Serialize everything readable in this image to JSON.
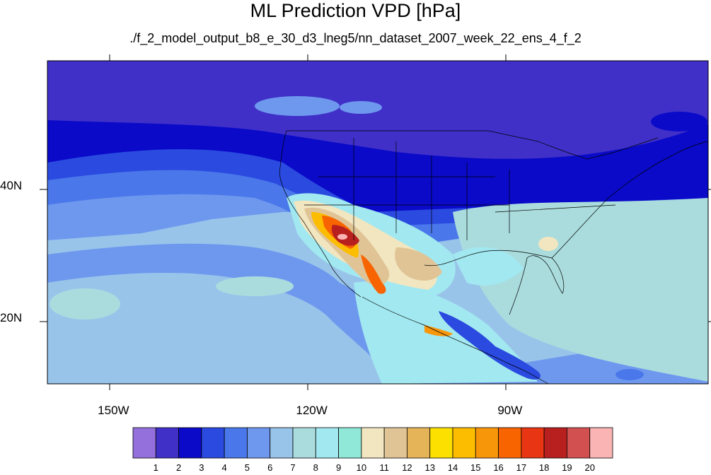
{
  "title": "ML Prediction VPD [hPa]",
  "subtitle": "./f_2_model_output_b8_e_30_d3_lneg5/nn_dataset_2007_week_22_ens_4_f_2",
  "lat_labels": [
    {
      "text": "40N",
      "lat": 40
    },
    {
      "text": "20N",
      "lat": 20
    }
  ],
  "lon_labels": [
    {
      "text": "150W",
      "lon": -150
    },
    {
      "text": "120W",
      "lon": -120
    },
    {
      "text": "90W",
      "lon": -90
    }
  ],
  "map_extent": {
    "lon": [
      -160,
      -60
    ],
    "lat": [
      10,
      59
    ]
  },
  "colorbar": {
    "labels": [
      "1",
      "2",
      "3",
      "4",
      "5",
      "6",
      "7",
      "8",
      "9",
      "10",
      "11",
      "12",
      "13",
      "14",
      "15",
      "16",
      "17",
      "18",
      "19",
      "20"
    ],
    "colors": [
      "#9370db",
      "#4030c8",
      "#0a0ac8",
      "#2a4ae0",
      "#4a78ea",
      "#6e98ee",
      "#98c4ea",
      "#aadcde",
      "#a2e8f0",
      "#90e8d8",
      "#f2e6c0",
      "#e0c496",
      "#e6b458",
      "#fce000",
      "#fcbc00",
      "#f8960a",
      "#f86400",
      "#e83614",
      "#b82020",
      "#d25050",
      "#fab4b4"
    ]
  },
  "chart_data": {
    "type": "heatmap",
    "title": "ML Prediction VPD [hPa]",
    "subtitle": "./f_2_model_output_b8_e_30_d3_lneg5/nn_dataset_2007_week_22_ens_4_f_2",
    "units": "hPa",
    "lon_range": [
      -160,
      -60
    ],
    "lat_range": [
      10,
      59
    ],
    "contour_levels": [
      1,
      2,
      3,
      4,
      5,
      6,
      7,
      8,
      9,
      10,
      11,
      12,
      13,
      14,
      15,
      16,
      17,
      18,
      19,
      20
    ]
  }
}
